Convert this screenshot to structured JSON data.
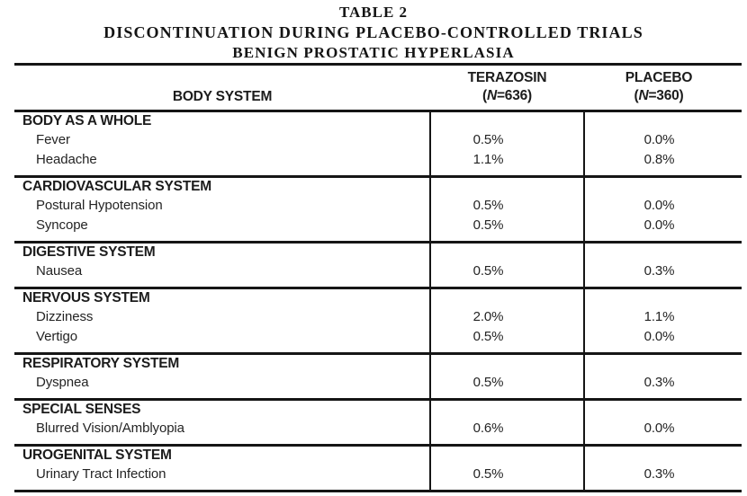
{
  "title": {
    "line1": "TABLE 2",
    "line2": "DISCONTINUATION DURING PLACEBO-CONTROLLED TRIALS",
    "line3": "BENIGN PROSTATIC HYPERLASIA"
  },
  "table": {
    "columns": {
      "body_system": "BODY SYSTEM",
      "terazosin": {
        "name": "TERAZOSIN",
        "n_prefix": "(",
        "n_italic": "N",
        "n_suffix": "=636)"
      },
      "placebo": {
        "name": "PLACEBO",
        "n_prefix": "(",
        "n_italic": "N",
        "n_suffix": "=360)"
      }
    },
    "groups": [
      {
        "system": "BODY AS A WHOLE",
        "rows": [
          {
            "label": "Fever",
            "terazosin": "0.5%",
            "placebo": "0.0%"
          },
          {
            "label": "Headache",
            "terazosin": "1.1%",
            "placebo": "0.8%"
          }
        ]
      },
      {
        "system": "CARDIOVASCULAR SYSTEM",
        "rows": [
          {
            "label": "Postural Hypotension",
            "terazosin": "0.5%",
            "placebo": "0.0%"
          },
          {
            "label": "Syncope",
            "terazosin": "0.5%",
            "placebo": "0.0%"
          }
        ]
      },
      {
        "system": "DIGESTIVE SYSTEM",
        "rows": [
          {
            "label": "Nausea",
            "terazosin": "0.5%",
            "placebo": "0.3%"
          }
        ]
      },
      {
        "system": "NERVOUS SYSTEM",
        "rows": [
          {
            "label": "Dizziness",
            "terazosin": "2.0%",
            "placebo": "1.1%"
          },
          {
            "label": "Vertigo",
            "terazosin": "0.5%",
            "placebo": "0.0%"
          }
        ]
      },
      {
        "system": "RESPIRATORY SYSTEM",
        "rows": [
          {
            "label": "Dyspnea",
            "terazosin": "0.5%",
            "placebo": "0.3%"
          }
        ]
      },
      {
        "system": "SPECIAL SENSES",
        "rows": [
          {
            "label": "Blurred Vision/Amblyopia",
            "terazosin": "0.6%",
            "placebo": "0.0%"
          }
        ]
      },
      {
        "system": "UROGENITAL SYSTEM",
        "rows": [
          {
            "label": "Urinary Tract Infection",
            "terazosin": "0.5%",
            "placebo": "0.3%"
          }
        ]
      }
    ]
  },
  "colors": {
    "background": "#ffffff",
    "text": "#242424",
    "rule": "#151515"
  }
}
